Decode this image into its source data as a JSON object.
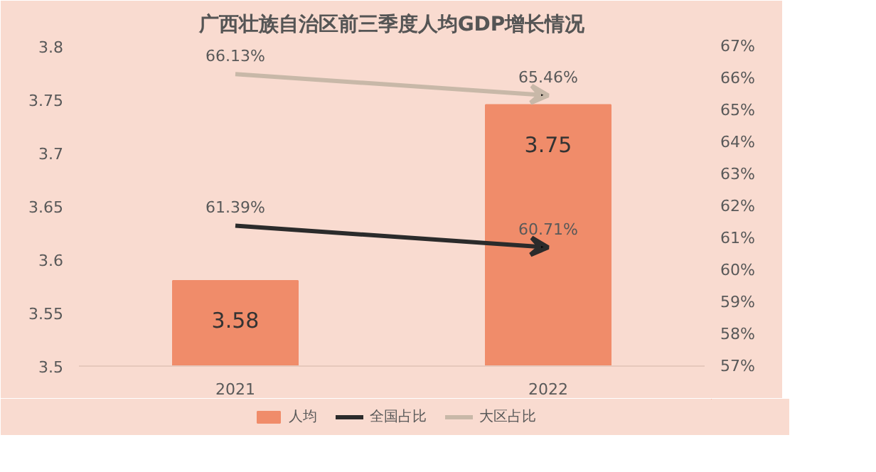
{
  "chart_data": {
    "type": "bar",
    "title": "广西壮族自治区前三季度人均GDP增长情况",
    "categories": [
      "2021",
      "2022"
    ],
    "series": [
      {
        "name": "人均",
        "color": "#f08c6a",
        "values": [
          3.58,
          3.745
        ],
        "value_labels": [
          "3.58",
          "3.75"
        ]
      },
      {
        "name": "全国占比",
        "type": "line",
        "axis": "y2",
        "color": "#2b2b2b",
        "values": [
          61.39,
          60.71
        ],
        "value_labels": [
          "61.39%",
          "60.71%"
        ]
      },
      {
        "name": "大区占比",
        "type": "line",
        "axis": "y2",
        "color": "#c8b8a8",
        "values": [
          66.13,
          65.46
        ],
        "value_labels": [
          "66.13%",
          "65.46%"
        ]
      }
    ],
    "ylim": [
      3.5,
      3.8
    ],
    "yticks": [
      3.5,
      3.55,
      3.6,
      3.65,
      3.7,
      3.75,
      3.8
    ],
    "y2lim": [
      57,
      67
    ],
    "y2ticks": [
      {
        "value": 57,
        "label": "57%"
      },
      {
        "value": 58,
        "label": "58%"
      },
      {
        "value": 59,
        "label": "59%"
      },
      {
        "value": 60,
        "label": "60%"
      },
      {
        "value": 61,
        "label": "61%"
      },
      {
        "value": 62,
        "label": "62%"
      },
      {
        "value": 63,
        "label": "63%"
      },
      {
        "value": 64,
        "label": "64%"
      },
      {
        "value": 65,
        "label": "65%"
      },
      {
        "value": 66,
        "label": "66%"
      },
      {
        "value": 67,
        "label": "67%"
      }
    ],
    "legend": "bottom",
    "grid": false
  }
}
